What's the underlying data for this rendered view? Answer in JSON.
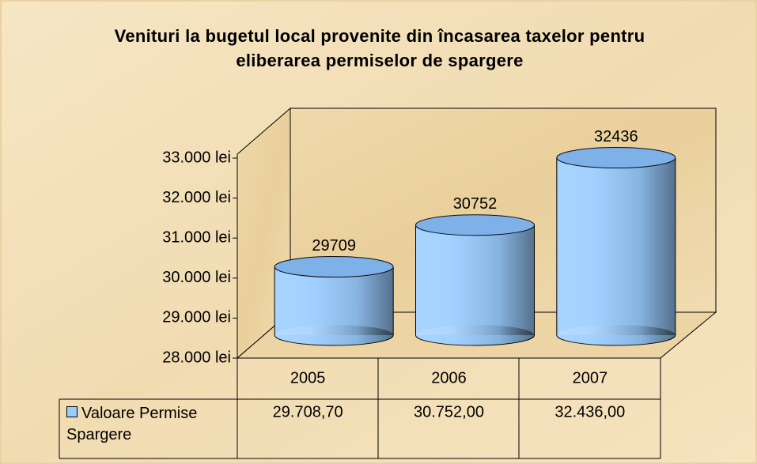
{
  "chart_data": {
    "type": "bar",
    "title": "Venituri la bugetul local provenite din încasarea taxelor pentru eliberarea permiselor de spargere",
    "categories": [
      "2005",
      "2006",
      "2007"
    ],
    "series": [
      {
        "name": "Valoare Permise Spargere",
        "color": "#99ccff",
        "values": [
          29708.7,
          30752,
          32436
        ],
        "value_labels": [
          "29709",
          "30752",
          "32436"
        ],
        "table_labels": [
          "29.708,70",
          "30.752,00",
          "32.436,00"
        ]
      }
    ],
    "ylim": [
      28000,
      33000
    ],
    "yticks": [
      {
        "value": 28000,
        "label": "28.000 lei"
      },
      {
        "value": 29000,
        "label": "29.000 lei"
      },
      {
        "value": 30000,
        "label": "30.000 lei"
      },
      {
        "value": 31000,
        "label": "31.000 lei"
      },
      {
        "value": 32000,
        "label": "32.000 lei"
      },
      {
        "value": 33000,
        "label": "33.000 lei"
      }
    ]
  }
}
